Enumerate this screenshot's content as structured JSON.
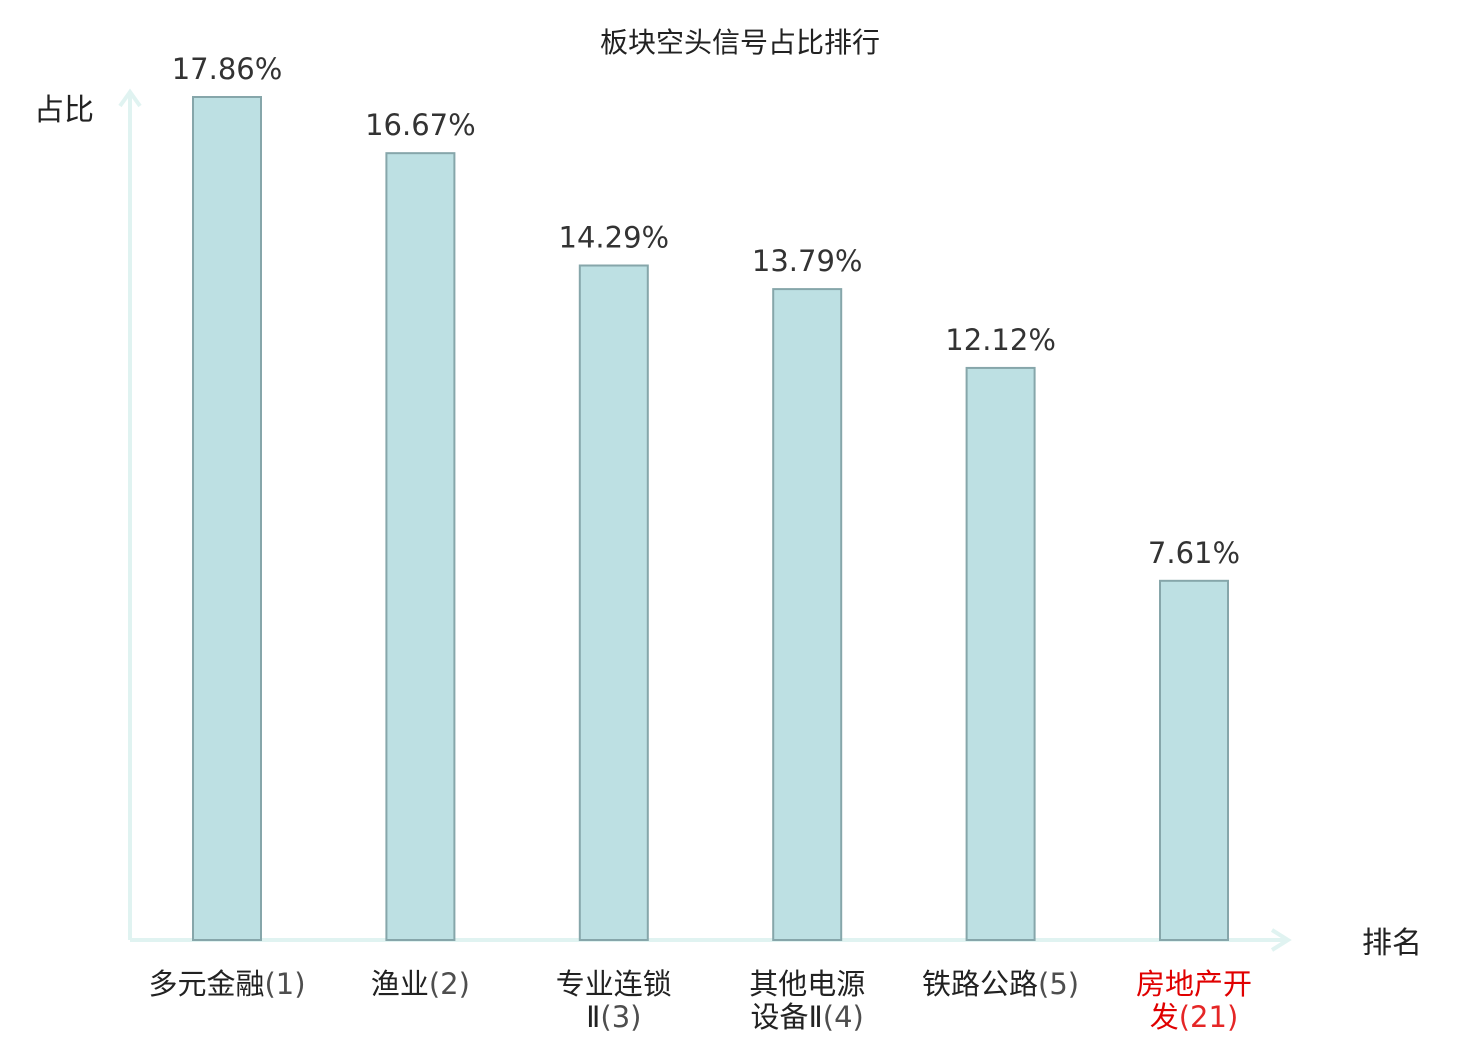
{
  "chart_data": {
    "type": "bar",
    "title": "板块空头信号占比排行",
    "ylabel": "占比",
    "xlabel": "排名",
    "categories": [
      {
        "lines": [
          "多元金融"
        ],
        "rank": "(1)",
        "highlight": false
      },
      {
        "lines": [
          "渔业"
        ],
        "rank": "(2)",
        "highlight": false
      },
      {
        "lines": [
          "专业连锁",
          "Ⅱ"
        ],
        "rank": "(3)",
        "highlight": false
      },
      {
        "lines": [
          "其他电源",
          "设备Ⅱ"
        ],
        "rank": "(4)",
        "highlight": false
      },
      {
        "lines": [
          "铁路公路"
        ],
        "rank": "(5)",
        "highlight": false
      },
      {
        "lines": [
          "房地产开",
          "发"
        ],
        "rank": "(21)",
        "highlight": true
      }
    ],
    "values": [
      17.86,
      16.67,
      14.29,
      13.79,
      12.12,
      7.61
    ],
    "value_labels": [
      "17.86%",
      "16.67%",
      "14.29%",
      "13.79%",
      "12.12%",
      "7.61%"
    ],
    "ylim": [
      0,
      17.86
    ],
    "grid": false,
    "colors": {
      "bar_fill": "#bde0e3",
      "bar_stroke": "#86a6aa",
      "axis": "#e0f3f1",
      "text": "#222222",
      "value_label": "#333333",
      "highlight": "#e00000"
    }
  }
}
